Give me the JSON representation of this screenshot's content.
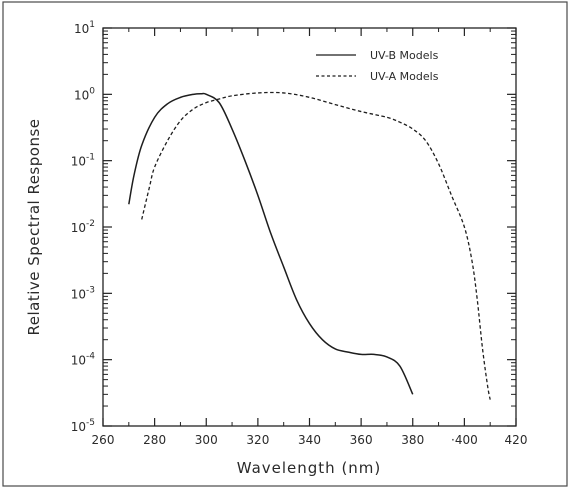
{
  "chart_data": {
    "type": "line",
    "title": "",
    "xlabel": "Wavelength (nm)",
    "ylabel": "Relative Spectral Response",
    "xlim": [
      260,
      420
    ],
    "ylim_log10": [
      -5,
      1
    ],
    "y_scale": "log",
    "x_tick_labels": [
      "260",
      "280",
      "300",
      "320",
      "340",
      "360",
      "380",
      "·400",
      "420"
    ],
    "y_tick_labels": [
      {
        "base": "10",
        "exp": "-5"
      },
      {
        "base": "10",
        "exp": "-4"
      },
      {
        "base": "10",
        "exp": "-3"
      },
      {
        "base": "10",
        "exp": "-2"
      },
      {
        "base": "10",
        "exp": "-1"
      },
      {
        "base": "10",
        "exp": "0"
      },
      {
        "base": "10",
        "exp": "1"
      }
    ],
    "grid": false,
    "legend_position": "top-right",
    "line_color": "#1e1e1e",
    "series": [
      {
        "name": "UV-B Models",
        "style": "solid",
        "points": [
          [
            270,
            0.022
          ],
          [
            272,
            0.06
          ],
          [
            275,
            0.17
          ],
          [
            280,
            0.45
          ],
          [
            285,
            0.72
          ],
          [
            290,
            0.9
          ],
          [
            295,
            1.0
          ],
          [
            298,
            1.02
          ],
          [
            300,
            1.0
          ],
          [
            305,
            0.75
          ],
          [
            310,
            0.3
          ],
          [
            315,
            0.1
          ],
          [
            320,
            0.03
          ],
          [
            325,
            0.008
          ],
          [
            330,
            0.0025
          ],
          [
            335,
            0.0008
          ],
          [
            340,
            0.00035
          ],
          [
            345,
            0.0002
          ],
          [
            350,
            0.000145
          ],
          [
            355,
            0.00013
          ],
          [
            360,
            0.00012
          ],
          [
            365,
            0.00012
          ],
          [
            370,
            0.00011
          ],
          [
            375,
            8e-05
          ],
          [
            380,
            3e-05
          ]
        ]
      },
      {
        "name": "UV-A Models",
        "style": "dashed",
        "points": [
          [
            275,
            0.013
          ],
          [
            278,
            0.04
          ],
          [
            280,
            0.08
          ],
          [
            285,
            0.2
          ],
          [
            290,
            0.4
          ],
          [
            295,
            0.6
          ],
          [
            300,
            0.75
          ],
          [
            305,
            0.85
          ],
          [
            310,
            0.95
          ],
          [
            320,
            1.05
          ],
          [
            330,
            1.05
          ],
          [
            340,
            0.9
          ],
          [
            350,
            0.7
          ],
          [
            360,
            0.55
          ],
          [
            370,
            0.45
          ],
          [
            375,
            0.38
          ],
          [
            380,
            0.3
          ],
          [
            385,
            0.2
          ],
          [
            390,
            0.09
          ],
          [
            395,
            0.03
          ],
          [
            400,
            0.01
          ],
          [
            403,
            0.003
          ],
          [
            405,
            0.0008
          ],
          [
            407,
            0.00015
          ],
          [
            409,
            4e-05
          ],
          [
            410,
            2.5e-05
          ]
        ]
      }
    ]
  }
}
